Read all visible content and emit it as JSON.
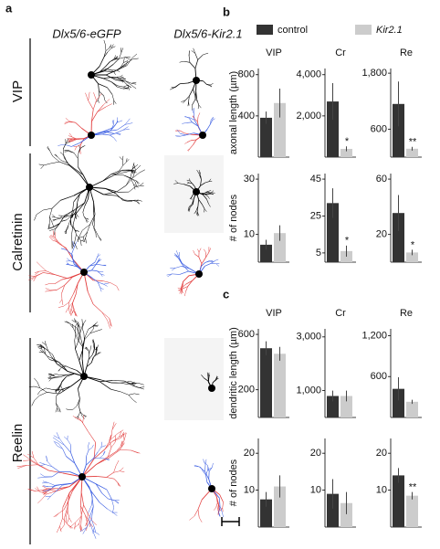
{
  "figure": {
    "panel_a": "a",
    "panel_b": "b",
    "panel_c": "c",
    "col_egfp": "Dlx5/6-eGFP",
    "col_kir": "Dlx5/6-Kir2.1",
    "row_vip": "VIP",
    "row_calretinin": "Calretinin",
    "row_reelin": "Reelin"
  },
  "chart_data": [
    {
      "type": "bar",
      "title": "VIP",
      "ylabel": "axonal length (µm)",
      "ylim": [
        0,
        860
      ],
      "yticks": [
        400,
        800
      ],
      "series": [
        {
          "name": "control",
          "color": "#333333",
          "values": [
            382
          ],
          "errors": [
            60
          ]
        },
        {
          "name": "Kir2.1",
          "color": "#cccccc",
          "values": [
            525
          ],
          "errors": [
            140
          ]
        }
      ]
    },
    {
      "type": "bar",
      "title": "Cr",
      "ylim": [
        0,
        4300
      ],
      "yticks": [
        {
          "value": 2000,
          "label": "2,000"
        },
        {
          "value": 4000,
          "label": "4,000"
        }
      ],
      "series": [
        {
          "color": "#333333",
          "values": [
            2700
          ],
          "errors": [
            890
          ]
        },
        {
          "color": "#cccccc",
          "values": [
            400
          ],
          "errors": [
            120
          ]
        }
      ],
      "annotation": "*"
    },
    {
      "type": "bar",
      "title": "Re",
      "ylim": [
        0,
        1900
      ],
      "yticks": [
        600,
        {
          "value": 1800,
          "label": "1,800"
        }
      ],
      "series": [
        {
          "color": "#333333",
          "values": [
            1140
          ],
          "errors": [
            480
          ]
        },
        {
          "color": "#cccccc",
          "values": [
            180
          ],
          "errors": [
            40
          ]
        }
      ],
      "annotation": "**"
    },
    {
      "type": "bar",
      "ylabel": "# of nodes",
      "ylim": [
        0,
        32
      ],
      "yticks": [
        10,
        30
      ],
      "series": [
        {
          "color": "#333333",
          "values": [
            6.3
          ],
          "errors": [
            1.8
          ]
        },
        {
          "color": "#cccccc",
          "values": [
            10.5
          ],
          "errors": [
            2.8
          ]
        }
      ]
    },
    {
      "type": "bar",
      "ylim": [
        0,
        48
      ],
      "yticks": [
        5,
        25,
        45
      ],
      "series": [
        {
          "color": "#333333",
          "values": [
            32
          ],
          "errors": [
            8
          ]
        },
        {
          "color": "#cccccc",
          "values": [
            6
          ],
          "errors": [
            3
          ]
        }
      ],
      "annotation": "*"
    },
    {
      "type": "bar",
      "ylim": [
        0,
        64
      ],
      "yticks": [
        20,
        60
      ],
      "series": [
        {
          "color": "#333333",
          "values": [
            35.5
          ],
          "errors": [
            13
          ]
        },
        {
          "color": "#cccccc",
          "values": [
            7
          ],
          "errors": [
            2
          ]
        }
      ],
      "annotation": "*"
    },
    {
      "type": "bar",
      "title": "VIP",
      "ylabel": "dendritic length (µm)",
      "ylim": [
        0,
        640
      ],
      "yticks": [
        200,
        600
      ],
      "series": [
        {
          "color": "#333333",
          "values": [
            500
          ],
          "errors": [
            50
          ]
        },
        {
          "color": "#cccccc",
          "values": [
            460
          ],
          "errors": [
            50
          ]
        }
      ]
    },
    {
      "type": "bar",
      "title": "Cr",
      "ylim": [
        0,
        3300
      ],
      "yticks": [
        {
          "value": 1000,
          "label": "1,000"
        },
        {
          "value": 3000,
          "label": "3,000"
        }
      ],
      "series": [
        {
          "color": "#333333",
          "values": [
            800
          ],
          "errors": [
            200
          ]
        },
        {
          "color": "#cccccc",
          "values": [
            800
          ],
          "errors": [
            200
          ]
        }
      ]
    },
    {
      "type": "bar",
      "title": "Re",
      "ylim": [
        0,
        1300
      ],
      "yticks": [
        600,
        {
          "value": 1200,
          "label": "1,200"
        }
      ],
      "series": [
        {
          "color": "#333333",
          "values": [
            420
          ],
          "errors": [
            170
          ]
        },
        {
          "color": "#cccccc",
          "values": [
            230
          ],
          "errors": [
            30
          ]
        }
      ]
    },
    {
      "type": "bar",
      "ylabel": "# of nodes",
      "ylim": [
        0,
        24
      ],
      "yticks": [
        10,
        20
      ],
      "series": [
        {
          "color": "#333333",
          "values": [
            7.5
          ],
          "errors": [
            2
          ]
        },
        {
          "color": "#cccccc",
          "values": [
            11
          ],
          "errors": [
            3
          ]
        }
      ]
    },
    {
      "type": "bar",
      "ylim": [
        0,
        24
      ],
      "yticks": [
        10,
        20
      ],
      "series": [
        {
          "color": "#333333",
          "values": [
            9
          ],
          "errors": [
            4
          ]
        },
        {
          "color": "#cccccc",
          "values": [
            6.5
          ],
          "errors": [
            3
          ]
        }
      ]
    },
    {
      "type": "bar",
      "ylim": [
        0,
        24
      ],
      "yticks": [
        10,
        20
      ],
      "series": [
        {
          "color": "#333333",
          "values": [
            14
          ],
          "errors": [
            2
          ]
        },
        {
          "color": "#cccccc",
          "values": [
            8.5
          ],
          "errors": [
            1
          ]
        }
      ],
      "annotation": "**"
    }
  ]
}
